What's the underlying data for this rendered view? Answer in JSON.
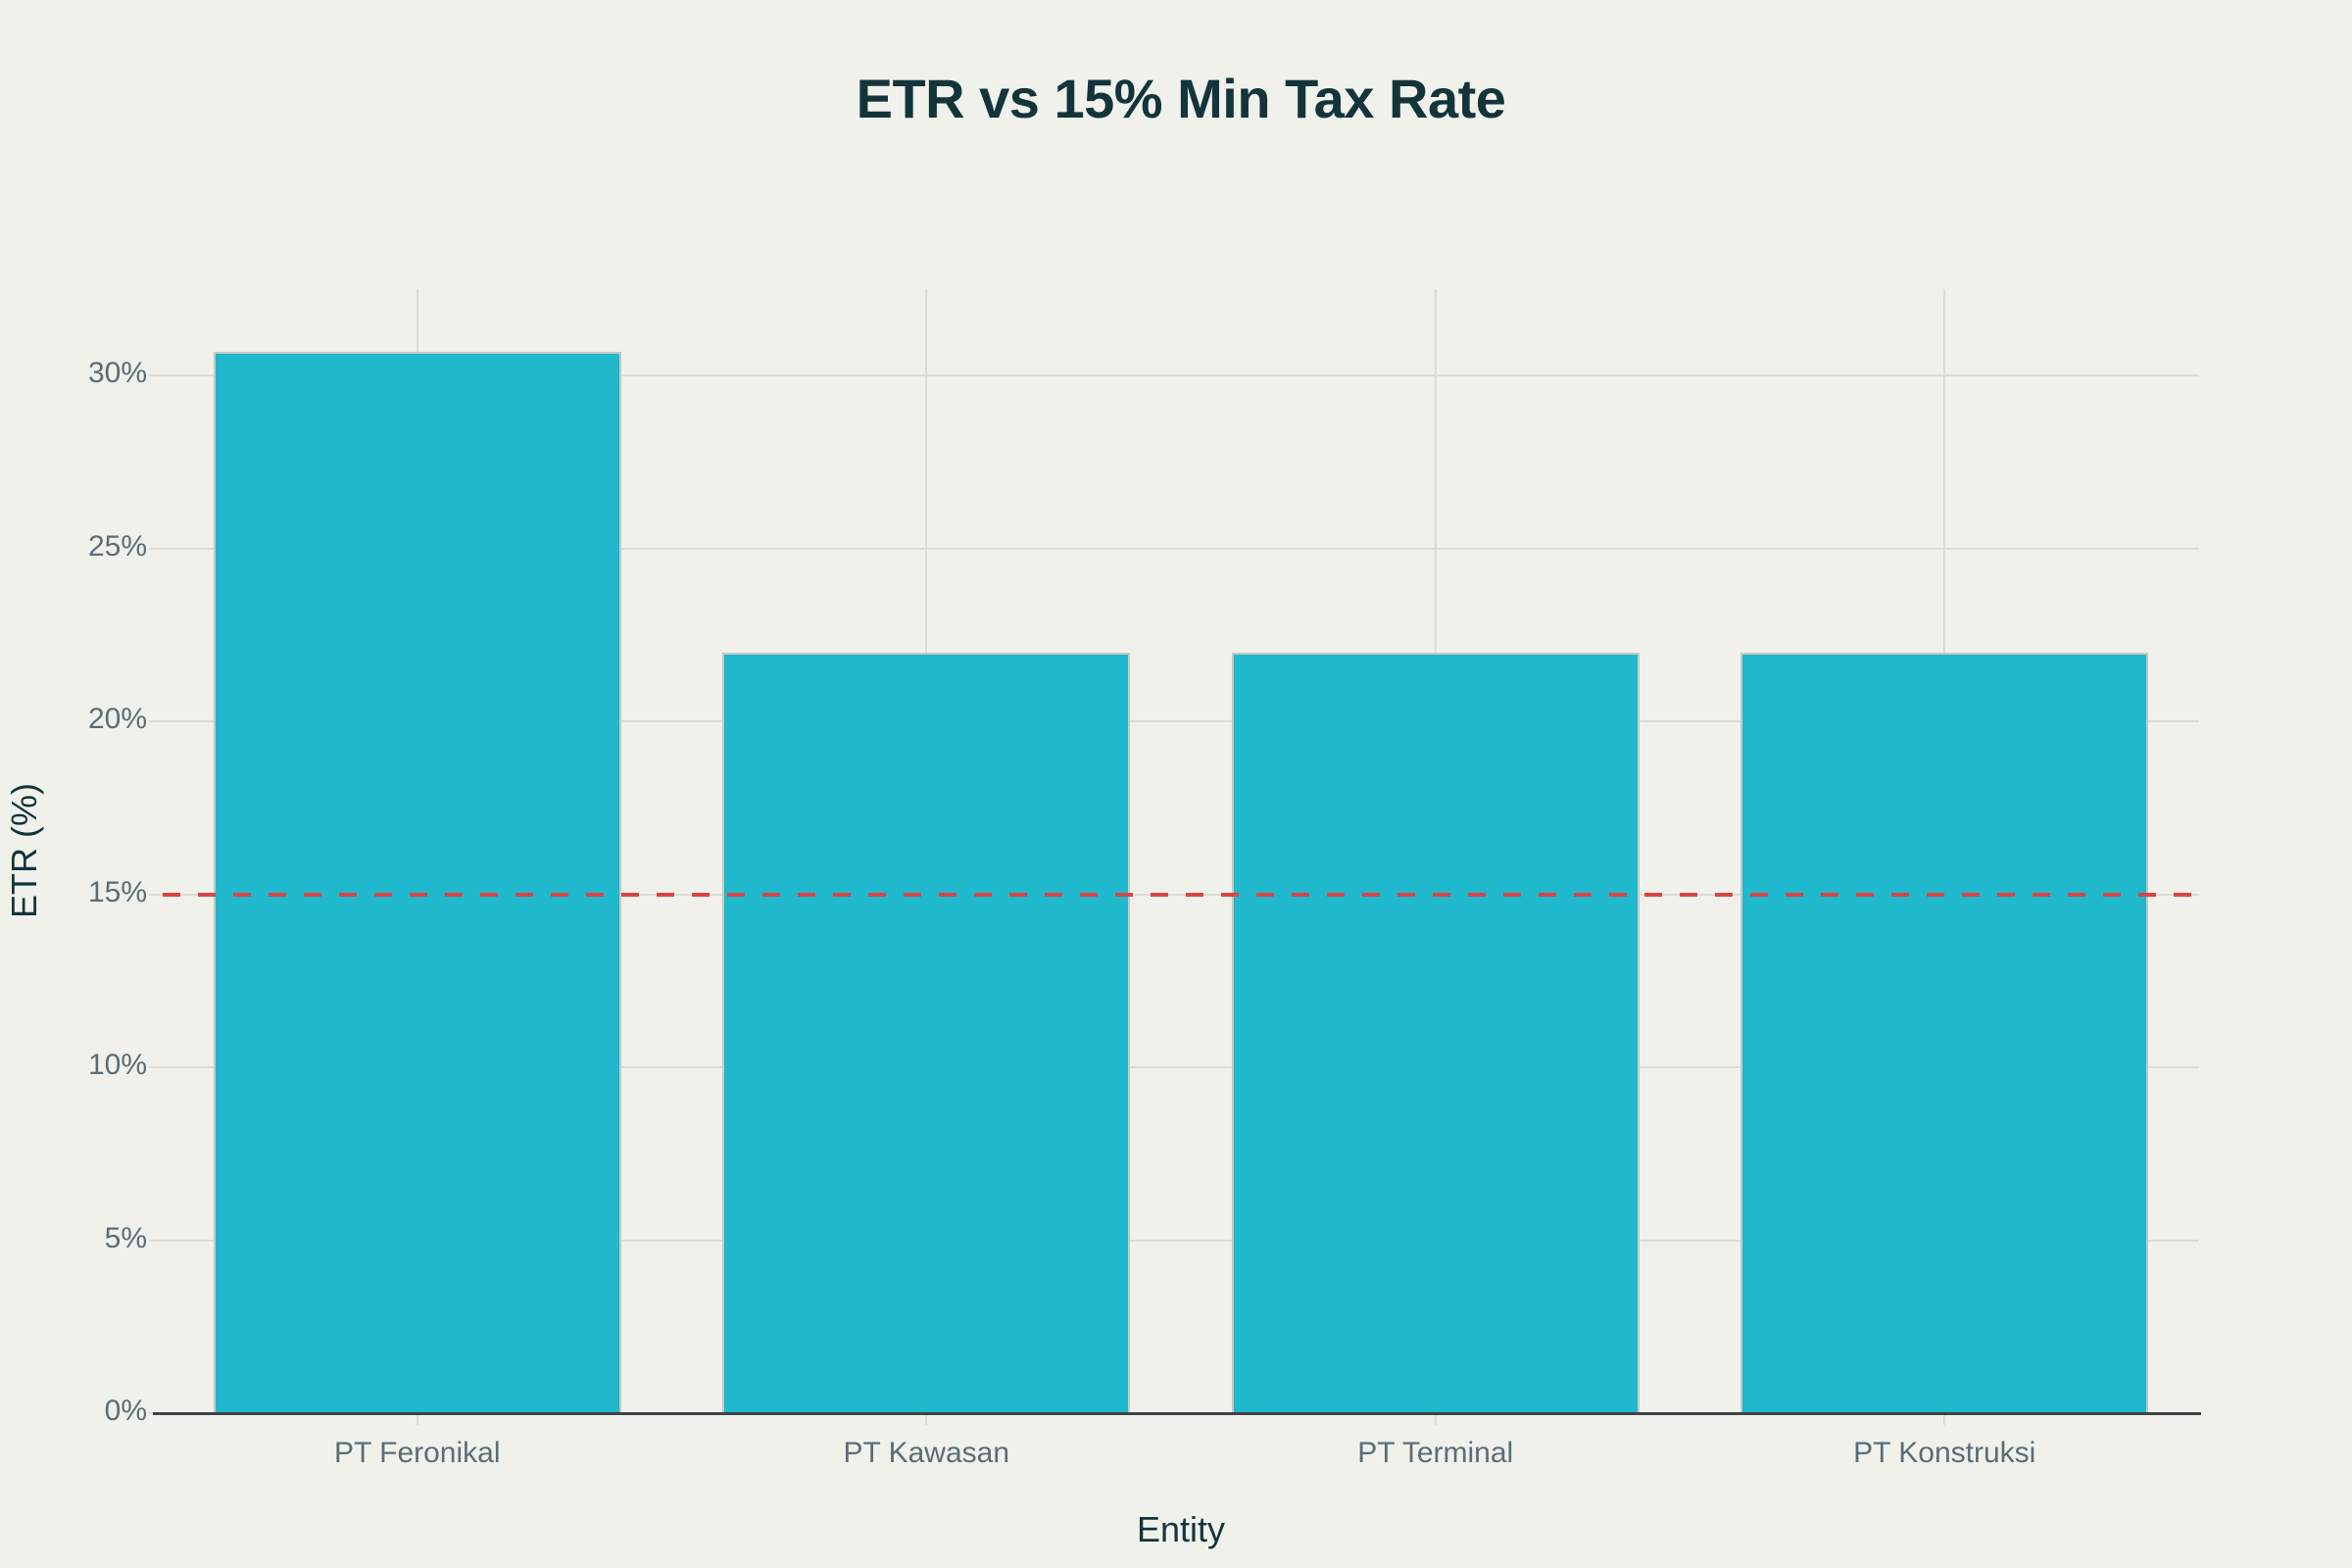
{
  "page": {
    "title": "ETR vs 15% Min Tax Rate"
  },
  "chart_data": {
    "type": "bar",
    "title": "ETR vs 15% Min Tax Rate",
    "xlabel": "Entity",
    "ylabel": "ETR (%)",
    "categories": [
      "PT Feronikal",
      "PT Kawasan",
      "PT Terminal",
      "PT Konstruksi"
    ],
    "values": [
      30.7,
      22,
      22,
      22
    ],
    "ylim": [
      0,
      32.5
    ],
    "yticks": [
      0,
      5,
      10,
      15,
      20,
      25,
      30
    ],
    "ytick_labels": [
      "0%",
      "5%",
      "10%",
      "15%",
      "20%",
      "25%",
      "30%"
    ],
    "grid": true,
    "legend_position": "none",
    "reference_line": {
      "value": 15,
      "style": "dashed"
    }
  },
  "colors": {
    "background": "#F0F1EB",
    "bar": "#1FB8CD",
    "bar_border": "#C7C9C2",
    "grid": "#DBDCD5",
    "axis_line": "#3F4447",
    "tick_text": "#5C6D76",
    "heading_text": "#13343B",
    "reference_line": "#DB4545"
  }
}
